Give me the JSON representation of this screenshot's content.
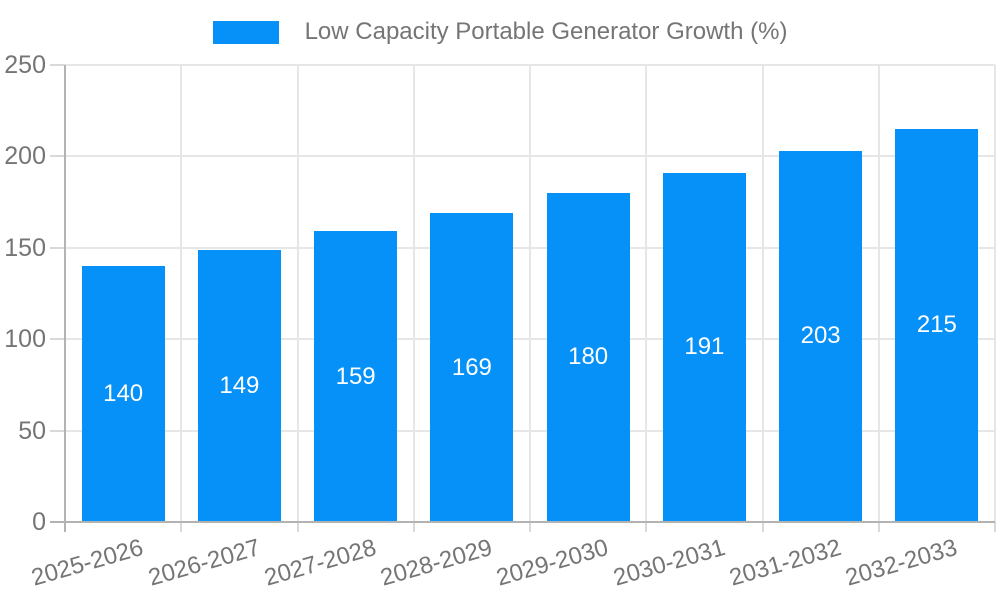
{
  "legend": {
    "label": "Low Capacity Portable Generator Growth (%)"
  },
  "chart_data": {
    "type": "bar",
    "title": "Low Capacity Portable Generator Growth (%)",
    "categories": [
      "2025-2026",
      "2026-2027",
      "2027-2028",
      "2028-2029",
      "2029-2030",
      "2030-2031",
      "2031-2032",
      "2032-2033"
    ],
    "values": [
      140,
      149,
      159,
      169,
      180,
      191,
      203,
      215
    ],
    "xlabel": "",
    "ylabel": "",
    "ylim": [
      0,
      250
    ],
    "yticks": [
      0,
      50,
      100,
      150,
      200,
      250
    ],
    "grid": true,
    "legend_position": "top",
    "value_labels": "inside-center"
  },
  "colors": {
    "bar": "#0591f7",
    "value_label": "#ffffff",
    "grid": "#e6e6e6",
    "axis": "#b3b3b3",
    "tick": "#d9d9d9",
    "text": "#757575",
    "background": "#ffffff"
  }
}
